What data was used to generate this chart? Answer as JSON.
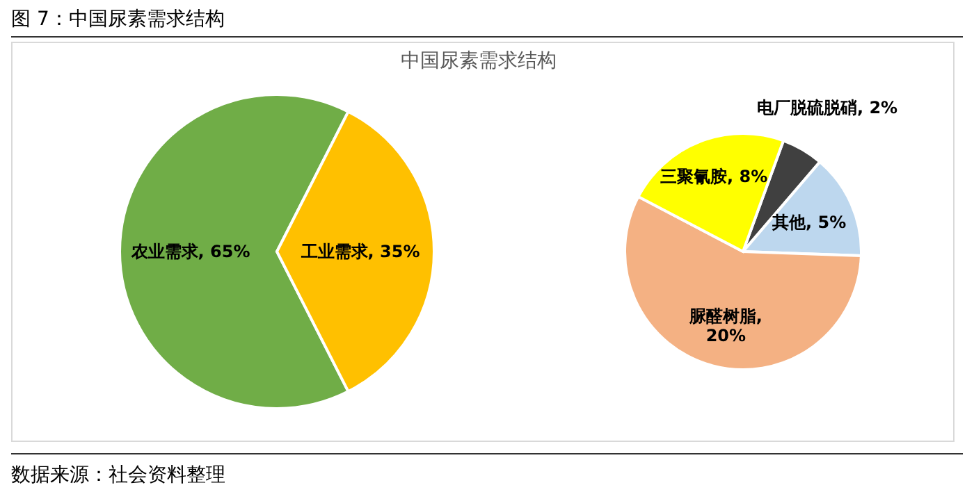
{
  "chart_data": [
    {
      "type": "pie",
      "title": "中国尿素需求结构",
      "categories": [
        "农业需求",
        "工业需求"
      ],
      "values": [
        65,
        35
      ],
      "colors": [
        "#70ad47",
        "#ffc000"
      ],
      "value_labels": [
        ", 65%",
        ", 35%"
      ],
      "annotations": [
        "图 7：中国尿素需求结构",
        "数据来源：社会资料整理"
      ],
      "legend": false
    },
    {
      "type": "pie",
      "categories": [
        "电厂脱硫脱硝",
        "其他",
        "脲醛树脂",
        "三聚氰胺"
      ],
      "values": [
        2,
        5,
        20,
        8
      ],
      "colors": [
        "#404040",
        "#bdd7ee",
        "#f4b183",
        "#ffff00"
      ],
      "value_labels": [
        ", 2%",
        ", 5%",
        ", 20%",
        ", 8%"
      ],
      "legend": false
    }
  ]
}
